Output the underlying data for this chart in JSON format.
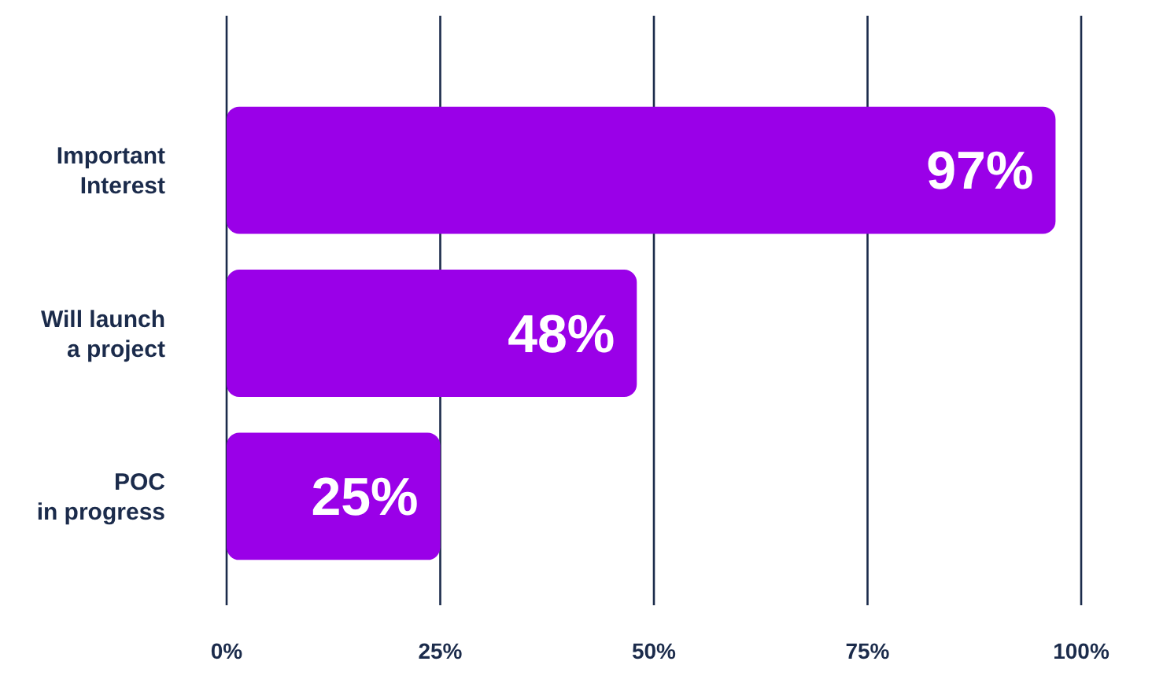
{
  "chart_data": {
    "type": "bar",
    "orientation": "horizontal",
    "categories": [
      "Important\nInterest",
      "Will launch\na project",
      "POC\nin progress"
    ],
    "values": [
      97,
      48,
      25
    ],
    "value_labels": [
      "97%",
      "48%",
      "25%"
    ],
    "color": "#9a00e8",
    "xlim": [
      0,
      100
    ],
    "xticks": [
      {
        "value": 0,
        "label": "0%"
      },
      {
        "value": 25,
        "label": "25%"
      },
      {
        "value": 50,
        "label": "50%"
      },
      {
        "value": 75,
        "label": "75%"
      },
      {
        "value": 100,
        "label": "100%"
      }
    ],
    "grid": "x"
  }
}
